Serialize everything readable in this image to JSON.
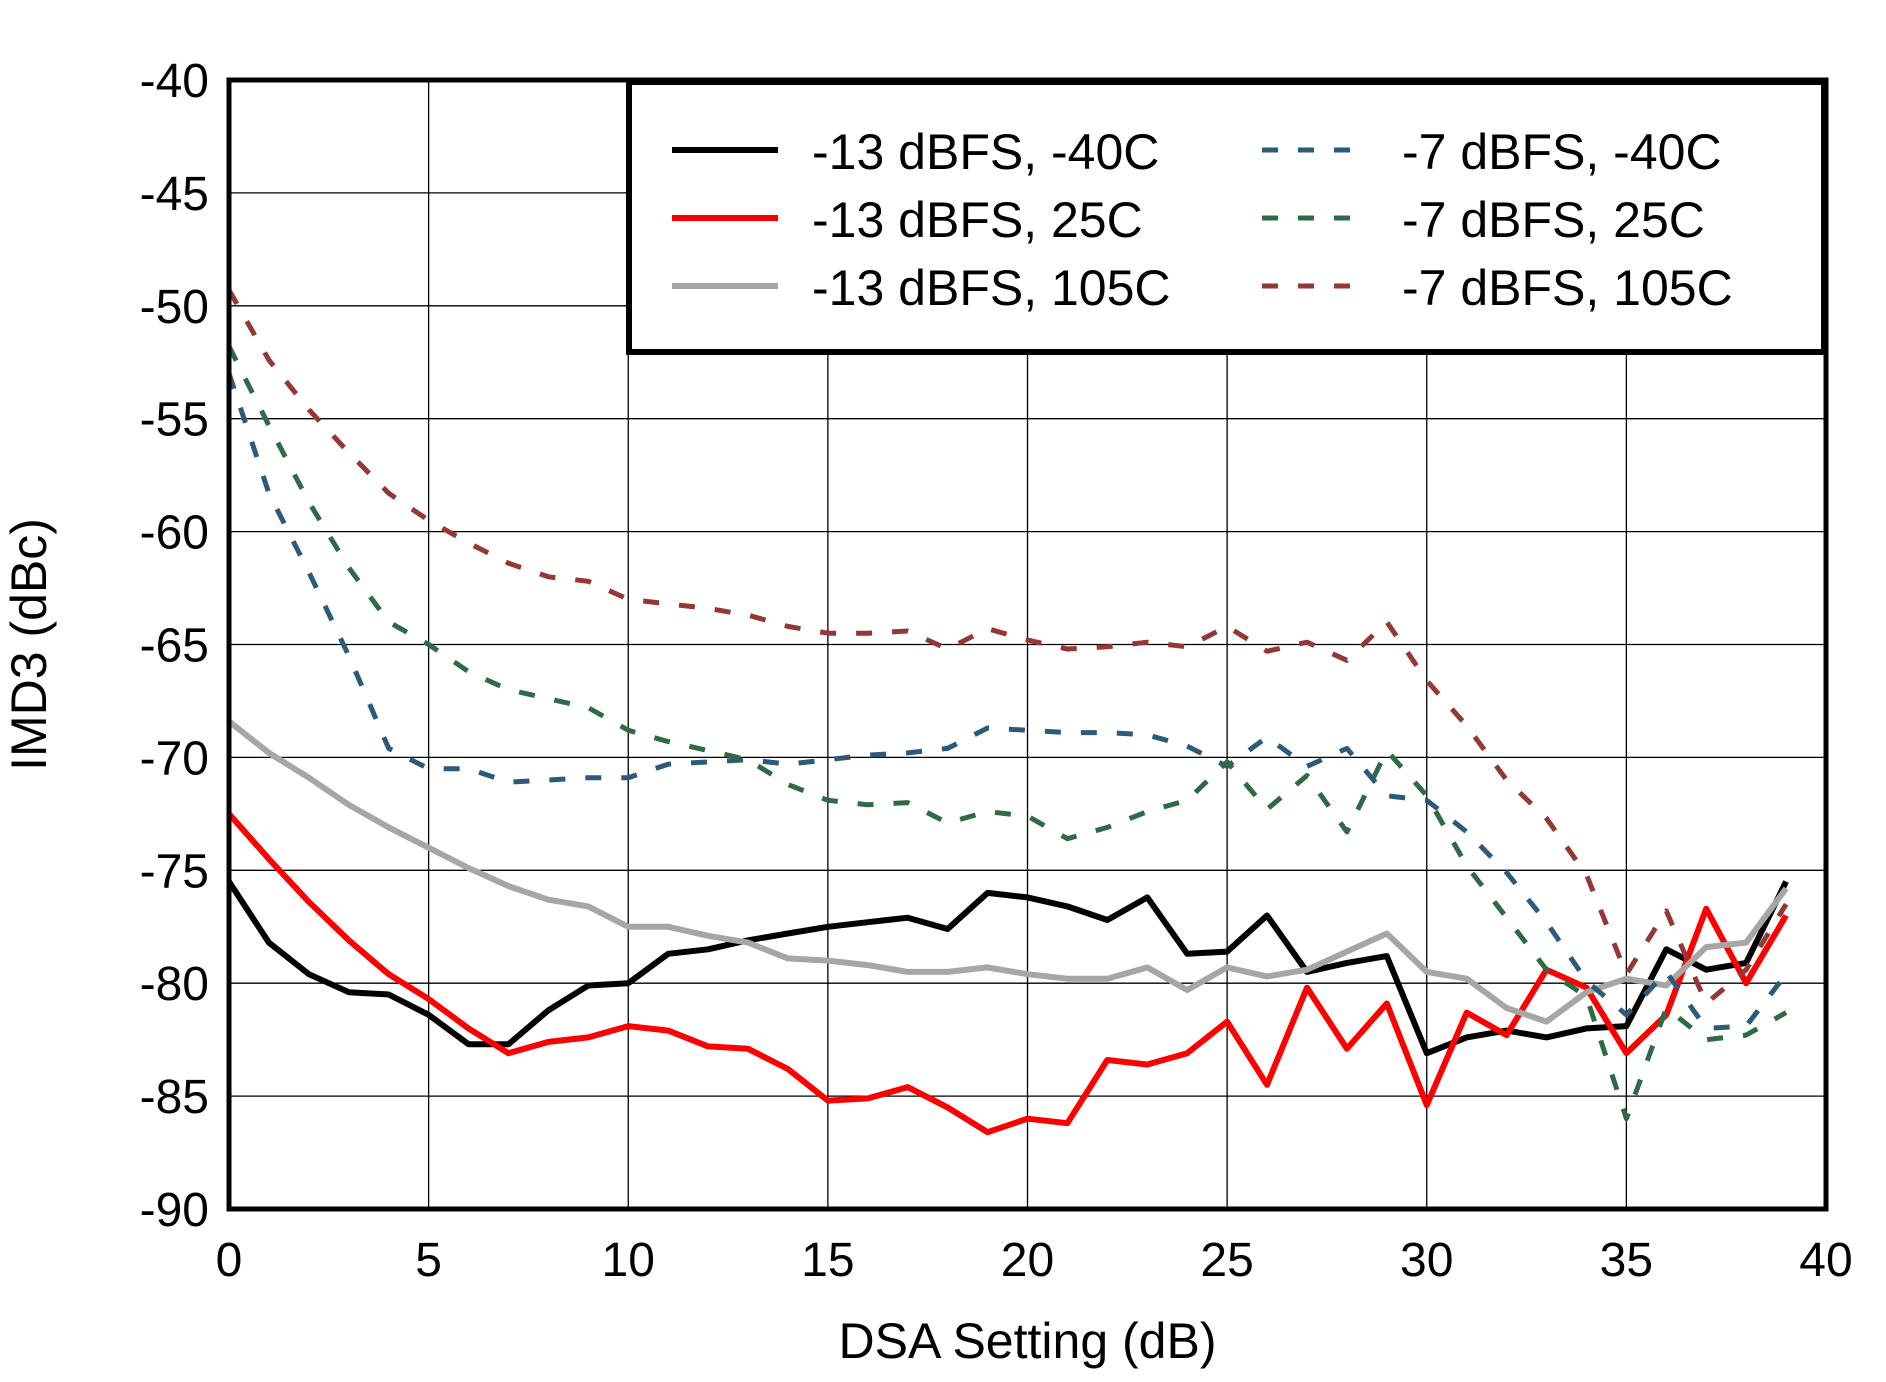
{
  "chart_data": {
    "type": "line",
    "title": "",
    "xlabel": "DSA Setting (dB)",
    "ylabel": "IMD3 (dBc)",
    "xlim": [
      0,
      40
    ],
    "ylim": [
      -90,
      -40
    ],
    "xticks": [
      0,
      5,
      10,
      15,
      20,
      25,
      30,
      35,
      40
    ],
    "yticks": [
      -40,
      -45,
      -50,
      -55,
      -60,
      -65,
      -70,
      -75,
      -80,
      -85,
      -90
    ],
    "grid": true,
    "legend_position": "top-right",
    "x": [
      0,
      1,
      2,
      3,
      4,
      5,
      6,
      7,
      8,
      9,
      10,
      11,
      12,
      13,
      14,
      15,
      16,
      17,
      18,
      19,
      20,
      21,
      22,
      23,
      24,
      25,
      26,
      27,
      28,
      29,
      30,
      31,
      32,
      33,
      34,
      35,
      36,
      37,
      38,
      39
    ],
    "series": [
      {
        "name": "-13 dBFS, -40C",
        "color": "#000000",
        "dash": "solid",
        "values": [
          -75.5,
          -78.2,
          -79.6,
          -80.4,
          -80.5,
          -81.4,
          -82.7,
          -82.7,
          -81.2,
          -80.1,
          -80.0,
          -78.7,
          -78.5,
          -78.1,
          -77.8,
          -77.5,
          -77.3,
          -77.1,
          -77.6,
          -76.0,
          -76.2,
          -76.6,
          -77.2,
          -76.2,
          -78.7,
          -78.6,
          -77.0,
          -79.5,
          -79.1,
          -78.8,
          -83.1,
          -82.4,
          -82.1,
          -82.4,
          -82.0,
          -81.9,
          -78.5,
          -79.4,
          -79.1,
          -75.5
        ]
      },
      {
        "name": "-13 dBFS, 25C",
        "color": "#ff0000",
        "dash": "solid",
        "values": [
          -72.5,
          -74.5,
          -76.4,
          -78.1,
          -79.6,
          -80.7,
          -82.0,
          -83.1,
          -82.6,
          -82.4,
          -81.9,
          -82.1,
          -82.8,
          -82.9,
          -83.8,
          -85.2,
          -85.1,
          -84.6,
          -85.5,
          -86.6,
          -86.0,
          -86.2,
          -83.4,
          -83.6,
          -83.1,
          -81.7,
          -84.5,
          -80.2,
          -82.9,
          -80.9,
          -85.4,
          -81.3,
          -82.3,
          -79.4,
          -80.2,
          -83.1,
          -81.4,
          -76.7,
          -80.0,
          -77.0
        ]
      },
      {
        "name": "-13 dBFS, 105C",
        "color": "#a6a6a6",
        "dash": "solid",
        "values": [
          -68.4,
          -69.8,
          -70.9,
          -72.1,
          -73.1,
          -74.0,
          -74.9,
          -75.7,
          -76.3,
          -76.6,
          -77.5,
          -77.5,
          -77.9,
          -78.2,
          -78.9,
          -79.0,
          -79.2,
          -79.5,
          -79.5,
          -79.3,
          -79.6,
          -79.8,
          -79.8,
          -79.3,
          -80.3,
          -79.3,
          -79.7,
          -79.4,
          -78.6,
          -77.8,
          -79.5,
          -79.8,
          -81.1,
          -81.7,
          -80.4,
          -79.8,
          -80.1,
          -78.4,
          -78.2,
          -75.8
        ]
      },
      {
        "name": "-7 dBFS, -40C",
        "color": "#2c5a7a",
        "dash": "dashed",
        "values": [
          -53.0,
          -58.3,
          -61.8,
          -65.5,
          -69.6,
          -70.5,
          -70.5,
          -71.1,
          -71.0,
          -70.9,
          -70.9,
          -70.3,
          -70.2,
          -70.1,
          -70.3,
          -70.1,
          -69.9,
          -69.8,
          -69.6,
          -68.7,
          -68.8,
          -68.9,
          -68.9,
          -69.0,
          -69.5,
          -70.4,
          -69.1,
          -70.4,
          -69.6,
          -71.7,
          -71.9,
          -73.3,
          -75.1,
          -77.3,
          -79.9,
          -81.4,
          -79.5,
          -82.0,
          -81.9,
          -79.6
        ]
      },
      {
        "name": "-7 dBFS, 25C",
        "color": "#2e6b44",
        "dash": "dashed",
        "values": [
          -51.8,
          -55.3,
          -58.7,
          -61.6,
          -64.0,
          -65.0,
          -66.2,
          -67.0,
          -67.4,
          -67.8,
          -68.8,
          -69.3,
          -69.7,
          -70.1,
          -71.2,
          -71.9,
          -72.1,
          -72.0,
          -72.9,
          -72.4,
          -72.6,
          -73.6,
          -73.1,
          -72.4,
          -71.9,
          -70.2,
          -72.3,
          -70.8,
          -73.3,
          -69.7,
          -71.7,
          -74.8,
          -77.1,
          -79.4,
          -80.6,
          -86.0,
          -81.1,
          -82.5,
          -82.3,
          -81.3
        ]
      },
      {
        "name": "-7 dBFS, 105C",
        "color": "#953735",
        "dash": "dashed",
        "values": [
          -49.3,
          -52.4,
          -54.6,
          -56.5,
          -58.3,
          -59.5,
          -60.5,
          -61.4,
          -62.0,
          -62.2,
          -63.0,
          -63.2,
          -63.4,
          -63.7,
          -64.2,
          -64.5,
          -64.5,
          -64.4,
          -65.2,
          -64.3,
          -64.8,
          -65.2,
          -65.1,
          -64.9,
          -65.1,
          -64.2,
          -65.3,
          -64.9,
          -65.7,
          -64.0,
          -66.6,
          -68.6,
          -71.0,
          -72.7,
          -75.2,
          -79.6,
          -76.8,
          -80.9,
          -79.4,
          -76.5
        ]
      }
    ]
  }
}
